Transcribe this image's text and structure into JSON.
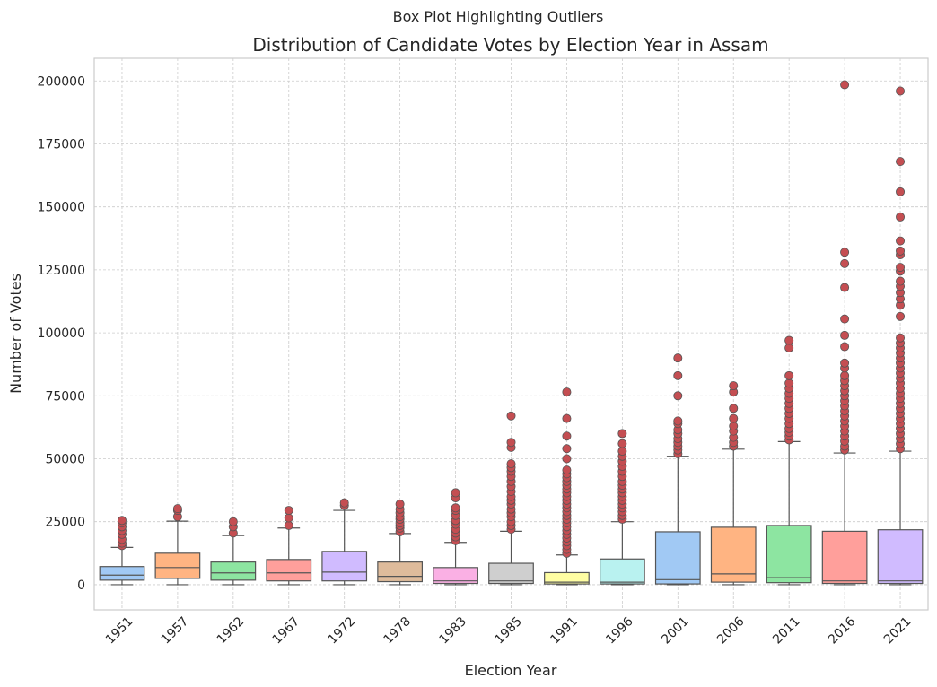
{
  "suptitle": "Box Plot Highlighting Outliers",
  "chart_data": {
    "type": "box",
    "title": "Distribution of Candidate Votes by Election Year in Assam",
    "xlabel": "Election Year",
    "ylabel": "Number of Votes",
    "ylim": [
      -10000,
      209000
    ],
    "yticks": [
      0,
      25000,
      50000,
      75000,
      100000,
      125000,
      150000,
      175000,
      200000
    ],
    "grid": true,
    "outlier_color": "#c44e52",
    "categories": [
      "1951",
      "1957",
      "1962",
      "1967",
      "1972",
      "1978",
      "1983",
      "1985",
      "1991",
      "1996",
      "2001",
      "2006",
      "2011",
      "2016",
      "2021"
    ],
    "boxes": [
      {
        "year": "1951",
        "color": "#a1c9f4",
        "whislo": 0,
        "q1": 1800,
        "med": 3800,
        "q3": 7200,
        "whishi": 14800,
        "outliers": [
          15500,
          16500,
          18000,
          20000,
          21500,
          23000,
          24500,
          25500
        ]
      },
      {
        "year": "1957",
        "color": "#ffb482",
        "whislo": 0,
        "q1": 2500,
        "med": 6800,
        "q3": 12500,
        "whishi": 25200,
        "outliers": [
          27000,
          29500,
          30200
        ]
      },
      {
        "year": "1962",
        "color": "#8de5a1",
        "whislo": 0,
        "q1": 1800,
        "med": 4700,
        "q3": 9000,
        "whishi": 19500,
        "outliers": [
          20500,
          23000,
          25000
        ]
      },
      {
        "year": "1967",
        "color": "#ff9f9b",
        "whislo": 0,
        "q1": 1500,
        "med": 4700,
        "q3": 10000,
        "whishi": 22500,
        "outliers": [
          23500,
          26500,
          29500
        ]
      },
      {
        "year": "1972",
        "color": "#d0bbff",
        "whislo": 0,
        "q1": 1500,
        "med": 5000,
        "q3": 13200,
        "whishi": 29500,
        "outliers": [
          31500,
          32500
        ]
      },
      {
        "year": "1978",
        "color": "#debb9b",
        "whislo": 0,
        "q1": 1200,
        "med": 3300,
        "q3": 9000,
        "whishi": 20300,
        "outliers": [
          21000,
          22500,
          23500,
          24500,
          26000,
          27000,
          28500,
          30000,
          32000
        ]
      },
      {
        "year": "1983",
        "color": "#fab0e4",
        "whislo": 0,
        "q1": 500,
        "med": 1500,
        "q3": 6800,
        "whishi": 16800,
        "outliers": [
          17500,
          19000,
          20500,
          22000,
          24000,
          25500,
          27500,
          29500,
          30500,
          34500,
          36500
        ]
      },
      {
        "year": "1985",
        "color": "#cfcfcf",
        "whislo": 0,
        "q1": 500,
        "med": 1500,
        "q3": 8500,
        "whishi": 21200,
        "outliers": [
          22000,
          23500,
          25000,
          27000,
          28500,
          30000,
          32000,
          33500,
          35000,
          37000,
          39000,
          41000,
          43000,
          45000,
          46500,
          48000,
          54500,
          56500,
          67000
        ]
      },
      {
        "year": "1991",
        "color": "#fffea3",
        "whislo": 0,
        "q1": 300,
        "med": 1000,
        "q3": 4800,
        "whishi": 11800,
        "outliers": [
          12500,
          14000,
          15500,
          17000,
          18500,
          20000,
          21500,
          23000,
          24500,
          26000,
          27500,
          29000,
          30500,
          32000,
          33500,
          35000,
          36500,
          38000,
          39500,
          41000,
          42500,
          44000,
          45500,
          50000,
          54000,
          59000,
          66000,
          76500
        ]
      },
      {
        "year": "1996",
        "color": "#b9f2f0",
        "whislo": 0,
        "q1": 300,
        "med": 1000,
        "q3": 10200,
        "whishi": 25000,
        "outliers": [
          26000,
          27500,
          29000,
          30500,
          32000,
          33500,
          35000,
          36500,
          38000,
          39500,
          41000,
          43000,
          45000,
          47000,
          49000,
          51000,
          53000,
          56000,
          60000
        ]
      },
      {
        "year": "2001",
        "color": "#a1c9f4",
        "whislo": 0,
        "q1": 300,
        "med": 2000,
        "q3": 21000,
        "whishi": 51000,
        "outliers": [
          52000,
          53500,
          55000,
          56500,
          58000,
          60000,
          61500,
          64000,
          65000,
          75000,
          83000,
          90000
        ]
      },
      {
        "year": "2006",
        "color": "#ffb482",
        "whislo": 0,
        "q1": 1000,
        "med": 4300,
        "q3": 22800,
        "whishi": 53800,
        "outliers": [
          55000,
          56500,
          58500,
          61000,
          63000,
          66000,
          70000,
          76500,
          79000
        ]
      },
      {
        "year": "2011",
        "color": "#8de5a1",
        "whislo": 0,
        "q1": 800,
        "med": 2800,
        "q3": 23500,
        "whishi": 56800,
        "outliers": [
          57500,
          59000,
          60500,
          62000,
          64000,
          66000,
          68000,
          70000,
          72000,
          74000,
          76000,
          78000,
          80000,
          83000,
          94000,
          97000
        ]
      },
      {
        "year": "2016",
        "color": "#ff9f9b",
        "whislo": 0,
        "q1": 500,
        "med": 1500,
        "q3": 21200,
        "whishi": 52300,
        "outliers": [
          53500,
          55000,
          57000,
          59000,
          61000,
          63000,
          65000,
          67000,
          69000,
          71000,
          73000,
          75000,
          77000,
          79000,
          81000,
          83000,
          86000,
          88000,
          94500,
          99000,
          105500,
          118000,
          127500,
          132000,
          198500
        ]
      },
      {
        "year": "2021",
        "color": "#d0bbff",
        "whislo": 0,
        "q1": 500,
        "med": 1500,
        "q3": 21800,
        "whishi": 53000,
        "outliers": [
          54000,
          56000,
          58000,
          60000,
          62000,
          64000,
          66000,
          68000,
          70000,
          72000,
          74000,
          76000,
          78000,
          80000,
          82000,
          84000,
          86000,
          88000,
          90000,
          92000,
          94000,
          96000,
          98000,
          106500,
          111000,
          113500,
          116000,
          118500,
          120500,
          124500,
          126000,
          131000,
          132500,
          136500,
          146000,
          156000,
          168000,
          196000
        ]
      }
    ]
  }
}
